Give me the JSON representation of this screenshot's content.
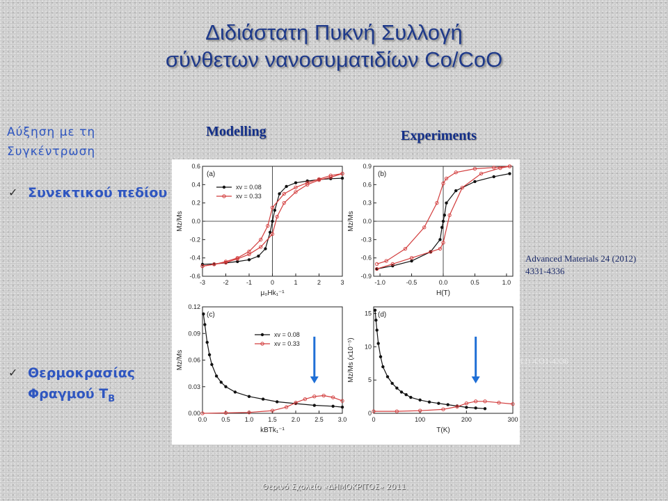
{
  "slide": {
    "title_line1": "Διδιάστατη Πυκνή Συλλογή",
    "title_line2": "σύνθετων νανοσυματιδίων Co/CoO",
    "left_heading": "Αύξηση με τη Συγκέντρωση",
    "bullet1": "Συνεκτικού πεδίου",
    "bullet2_main": "Θερμοκρασίας Φραγμού T",
    "bullet2_sub": "B",
    "check_glyph": "✓",
    "modelling_label": "Modelling",
    "experiments_label": "Experiments",
    "reference_line1": "Advanced Materials   24 (2012)",
    "reference_line2": "4331-4336",
    "ghost_text": "12) 4331-4336",
    "footer": "Θερινό Σχολείο «ΔΗΜΟΚΡΙΤΟΣ» 2011"
  },
  "colors": {
    "title": "#1f3a8a",
    "accent_blue": "#2f56c0",
    "series_black": "#111111",
    "series_red": "#d23c3c",
    "arrow": "#1f6fd6"
  },
  "chart_data": [
    {
      "type": "line",
      "panel_label": "(a)",
      "xlabel": "μ₀Hk₁⁻¹",
      "ylabel": "Mz/Ms",
      "xlim": [
        -3,
        3
      ],
      "ylim": [
        -0.6,
        0.6
      ],
      "xticks": [
        -3,
        -2,
        -1,
        0,
        1,
        2,
        3
      ],
      "yticks": [
        -0.6,
        -0.4,
        -0.2,
        0.0,
        0.2,
        0.4,
        0.6
      ],
      "tick_labels_x": [
        "-3",
        "-2",
        "-1",
        "0",
        "1",
        "2",
        "3"
      ],
      "tick_labels_y": [
        "-0.6",
        "-0.4",
        "-0.2",
        "0.0",
        "0.2",
        "0.4",
        "0.6"
      ],
      "legend": [
        "xv = 0.08",
        "xv = 0.33"
      ],
      "series": [
        {
          "name": "xv = 0.08",
          "x": [
            -3,
            -2.5,
            -2,
            -1.5,
            -1,
            -0.6,
            -0.3,
            -0.1,
            0,
            0.1,
            0.3,
            0.6,
            1,
            1.5,
            2,
            2.5,
            3
          ],
          "y": [
            -0.47,
            -0.465,
            -0.455,
            -0.44,
            -0.42,
            -0.38,
            -0.3,
            -0.12,
            0.0,
            0.12,
            0.3,
            0.38,
            0.42,
            0.44,
            0.455,
            0.465,
            0.47
          ]
        },
        {
          "name": "xv = 0.33 (descending)",
          "x": [
            3,
            2.5,
            2,
            1.5,
            1,
            0.5,
            0,
            -0.2,
            -0.5,
            -1,
            -1.5,
            -2,
            -2.5,
            -3
          ],
          "y": [
            0.52,
            0.5,
            0.46,
            0.42,
            0.37,
            0.3,
            0.15,
            -0.05,
            -0.2,
            -0.33,
            -0.4,
            -0.44,
            -0.47,
            -0.49
          ]
        },
        {
          "name": "xv = 0.33 (ascending)",
          "x": [
            -3,
            -2.5,
            -2,
            -1.5,
            -1,
            -0.5,
            0,
            0.2,
            0.5,
            1,
            1.5,
            2,
            2.5,
            3
          ],
          "y": [
            -0.49,
            -0.47,
            -0.45,
            -0.41,
            -0.36,
            -0.28,
            -0.14,
            0.05,
            0.2,
            0.32,
            0.4,
            0.45,
            0.48,
            0.52
          ]
        }
      ]
    },
    {
      "type": "line",
      "panel_label": "(b)",
      "xlabel": "H(T)",
      "ylabel": "Mz/Ms",
      "xlim": [
        -1.1,
        1.1
      ],
      "ylim": [
        -0.9,
        0.9
      ],
      "xticks": [
        -1.0,
        -0.5,
        0.0,
        0.5,
        1.0
      ],
      "yticks": [
        -0.9,
        -0.6,
        -0.3,
        0.0,
        0.3,
        0.6,
        0.9
      ],
      "tick_labels_x": [
        "-1.0",
        "-0.5",
        "0.0",
        "0.5",
        "1.0"
      ],
      "tick_labels_y": [
        "-0.9",
        "-0.6",
        "-0.3",
        "0.0",
        "0.3",
        "0.6",
        "0.9"
      ],
      "series": [
        {
          "name": "black",
          "x": [
            -1.05,
            -0.8,
            -0.5,
            -0.2,
            -0.05,
            -0.02,
            0,
            0.02,
            0.05,
            0.2,
            0.5,
            0.8,
            1.05
          ],
          "y": [
            -0.78,
            -0.73,
            -0.65,
            -0.5,
            -0.3,
            -0.1,
            0.0,
            0.1,
            0.3,
            0.5,
            0.65,
            0.73,
            0.78
          ]
        },
        {
          "name": "red (descending)",
          "x": [
            1.05,
            0.8,
            0.5,
            0.2,
            0.05,
            0.0,
            -0.1,
            -0.3,
            -0.6,
            -0.9,
            -1.05
          ],
          "y": [
            0.9,
            0.88,
            0.86,
            0.8,
            0.7,
            0.62,
            0.3,
            -0.1,
            -0.45,
            -0.65,
            -0.7
          ]
        },
        {
          "name": "red (ascending)",
          "x": [
            -1.05,
            -0.8,
            -0.5,
            -0.2,
            -0.05,
            0.0,
            0.1,
            0.3,
            0.6,
            0.9,
            1.05
          ],
          "y": [
            -0.78,
            -0.7,
            -0.6,
            -0.5,
            -0.45,
            -0.35,
            0.1,
            0.55,
            0.78,
            0.87,
            0.9
          ]
        }
      ]
    },
    {
      "type": "line",
      "panel_label": "(c)",
      "xlabel": "kBTk₁⁻¹",
      "ylabel": "Mz/Ms",
      "xlim": [
        0,
        3
      ],
      "ylim": [
        0,
        0.12
      ],
      "xticks": [
        0.0,
        0.5,
        1.0,
        1.5,
        2.0,
        2.5,
        3.0
      ],
      "yticks": [
        0.0,
        0.03,
        0.06,
        0.09,
        0.12
      ],
      "tick_labels_x": [
        "0.0",
        "0.5",
        "1.0",
        "1.5",
        "2.0",
        "2.5",
        "3.0"
      ],
      "tick_labels_y": [
        "0.00",
        "0.03",
        "0.06",
        "0.09",
        "0.12"
      ],
      "legend": [
        "xv = 0.08",
        "xv = 0.33"
      ],
      "arrow_at_x": 2.4,
      "series": [
        {
          "name": "xv = 0.08",
          "x": [
            0.02,
            0.05,
            0.1,
            0.15,
            0.2,
            0.3,
            0.4,
            0.5,
            0.7,
            1.0,
            1.3,
            1.6,
            2.0,
            2.4,
            2.8,
            3.0
          ],
          "y": [
            0.112,
            0.1,
            0.08,
            0.066,
            0.055,
            0.042,
            0.035,
            0.03,
            0.024,
            0.019,
            0.016,
            0.013,
            0.011,
            0.009,
            0.008,
            0.007
          ]
        },
        {
          "name": "xv = 0.33",
          "x": [
            0.0,
            0.5,
            1.0,
            1.5,
            1.8,
            2.0,
            2.2,
            2.4,
            2.6,
            2.8,
            3.0
          ],
          "y": [
            0.0,
            0.0005,
            0.001,
            0.003,
            0.007,
            0.012,
            0.016,
            0.019,
            0.02,
            0.018,
            0.014
          ]
        }
      ]
    },
    {
      "type": "line",
      "panel_label": "(d)",
      "xlabel": "T(K)",
      "ylabel": "Mz/Ms (x10⁻⁵)",
      "xlim": [
        0,
        300
      ],
      "ylim": [
        0,
        16
      ],
      "xticks": [
        0,
        100,
        200,
        300
      ],
      "yticks": [
        0,
        5,
        10,
        15
      ],
      "tick_labels_x": [
        "0",
        "100",
        "200",
        "300"
      ],
      "tick_labels_y": [
        "0",
        "5",
        "10",
        "15"
      ],
      "arrow_at_x": 220,
      "series": [
        {
          "name": "black",
          "x": [
            3,
            5,
            7,
            10,
            15,
            20,
            30,
            40,
            50,
            60,
            70,
            80,
            100,
            120,
            140,
            160,
            180,
            200,
            220,
            240
          ],
          "y": [
            15.5,
            14,
            12.5,
            10.5,
            8.5,
            7,
            5.5,
            4.5,
            3.8,
            3.2,
            2.8,
            2.4,
            2.0,
            1.7,
            1.5,
            1.3,
            1.1,
            0.9,
            0.8,
            0.7
          ]
        },
        {
          "name": "red",
          "x": [
            0,
            50,
            100,
            150,
            180,
            200,
            220,
            240,
            270,
            300
          ],
          "y": [
            0.3,
            0.3,
            0.4,
            0.6,
            1.0,
            1.5,
            1.8,
            1.8,
            1.6,
            1.4
          ]
        }
      ]
    }
  ]
}
